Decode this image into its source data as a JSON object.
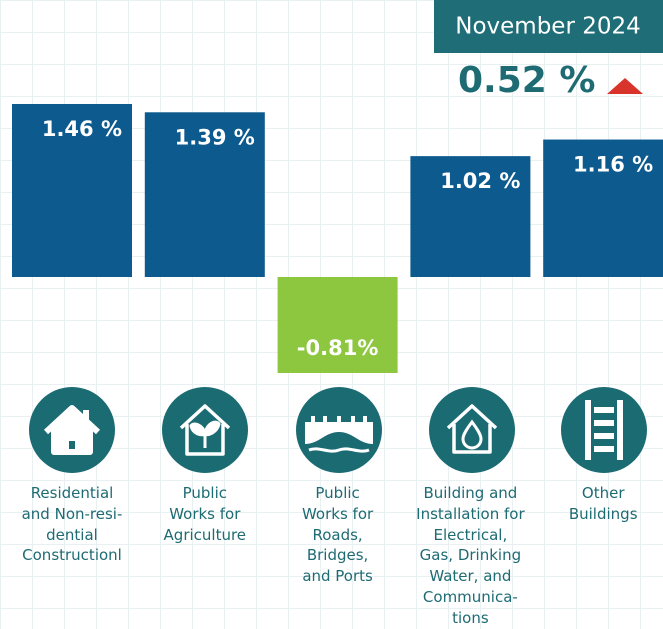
{
  "chart_data": {
    "type": "bar",
    "period": "November 2024",
    "headline_value": 0.52,
    "headline_label": "0.52 %",
    "categories": [
      "Residential\nand Non-resi-\ndential\nConstructionl",
      "Public\nWorks for\nAgriculture",
      "Public\nWorks for\nRoads,\nBridges,\nand Ports",
      "Building and\nInstallation for\nElectrical,\nGas, Drinking\nWater, and\nCommunica-\ntions",
      "Other\nBuildings"
    ],
    "values": [
      1.46,
      1.39,
      -0.81,
      1.02,
      1.16
    ],
    "value_labels": [
      "1.46 %",
      "1.39 %",
      "-0.81%",
      "1.02 %",
      "1.16 %"
    ],
    "color": "#0d5a8e",
    "negative_color": "#8dc63f",
    "up_color": "#d9342b",
    "down_color": "#8dc63f"
  }
}
